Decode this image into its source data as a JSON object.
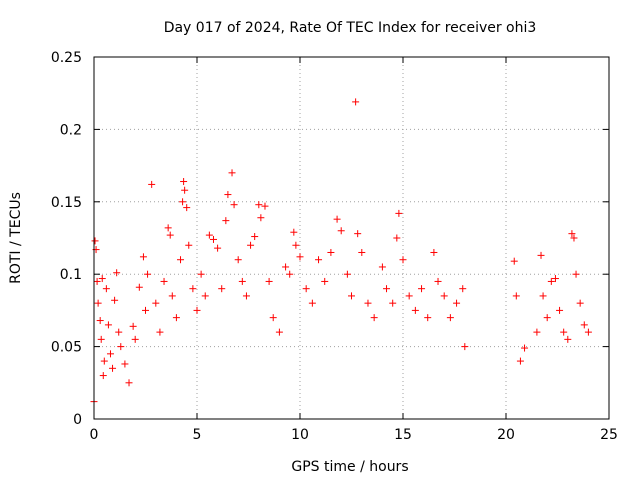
{
  "chart_data": {
    "type": "scatter",
    "title": "Day 017 of 2024, Rate Of TEC Index for receiver ohi3",
    "xlabel": "GPS time / hours",
    "ylabel": "ROTI / TECUs",
    "xlim": [
      0,
      25
    ],
    "ylim": [
      0,
      0.25
    ],
    "x_ticks": [
      "0",
      "5",
      "10",
      "15",
      "20",
      "25"
    ],
    "y_ticks": [
      "0",
      "0.05",
      "0.1",
      "0.15",
      "0.2",
      "0.25"
    ],
    "grid": true,
    "marker": "+",
    "color": "#ff0000",
    "series": [
      {
        "points": [
          [
            0.0,
            0.012
          ],
          [
            0.05,
            0.123
          ],
          [
            0.1,
            0.117
          ],
          [
            0.15,
            0.095
          ],
          [
            0.2,
            0.08
          ],
          [
            0.3,
            0.068
          ],
          [
            0.35,
            0.055
          ],
          [
            0.4,
            0.097
          ],
          [
            0.45,
            0.03
          ],
          [
            0.5,
            0.04
          ],
          [
            0.6,
            0.09
          ],
          [
            0.7,
            0.065
          ],
          [
            0.8,
            0.045
          ],
          [
            0.9,
            0.035
          ],
          [
            1.0,
            0.082
          ],
          [
            1.1,
            0.101
          ],
          [
            1.2,
            0.06
          ],
          [
            1.3,
            0.05
          ],
          [
            1.5,
            0.038
          ],
          [
            1.7,
            0.025
          ],
          [
            1.9,
            0.064
          ],
          [
            2.0,
            0.055
          ],
          [
            2.2,
            0.091
          ],
          [
            2.4,
            0.112
          ],
          [
            2.5,
            0.075
          ],
          [
            2.6,
            0.1
          ],
          [
            2.8,
            0.162
          ],
          [
            3.0,
            0.08
          ],
          [
            3.2,
            0.06
          ],
          [
            3.4,
            0.095
          ],
          [
            3.6,
            0.132
          ],
          [
            3.7,
            0.127
          ],
          [
            3.8,
            0.085
          ],
          [
            4.0,
            0.07
          ],
          [
            4.2,
            0.11
          ],
          [
            4.3,
            0.15
          ],
          [
            4.35,
            0.164
          ],
          [
            4.4,
            0.158
          ],
          [
            4.5,
            0.146
          ],
          [
            4.6,
            0.12
          ],
          [
            4.8,
            0.09
          ],
          [
            5.0,
            0.075
          ],
          [
            5.2,
            0.1
          ],
          [
            5.4,
            0.085
          ],
          [
            5.6,
            0.127
          ],
          [
            5.8,
            0.124
          ],
          [
            6.0,
            0.118
          ],
          [
            6.2,
            0.09
          ],
          [
            6.4,
            0.137
          ],
          [
            6.5,
            0.155
          ],
          [
            6.7,
            0.17
          ],
          [
            6.8,
            0.148
          ],
          [
            7.0,
            0.11
          ],
          [
            7.2,
            0.095
          ],
          [
            7.4,
            0.085
          ],
          [
            7.6,
            0.12
          ],
          [
            7.8,
            0.126
          ],
          [
            8.0,
            0.148
          ],
          [
            8.1,
            0.139
          ],
          [
            8.3,
            0.147
          ],
          [
            8.5,
            0.095
          ],
          [
            8.7,
            0.07
          ],
          [
            9.0,
            0.06
          ],
          [
            9.3,
            0.105
          ],
          [
            9.5,
            0.1
          ],
          [
            9.7,
            0.129
          ],
          [
            9.8,
            0.12
          ],
          [
            10.0,
            0.112
          ],
          [
            10.3,
            0.09
          ],
          [
            10.6,
            0.08
          ],
          [
            10.9,
            0.11
          ],
          [
            11.2,
            0.095
          ],
          [
            11.5,
            0.115
          ],
          [
            11.8,
            0.138
          ],
          [
            12.0,
            0.13
          ],
          [
            12.3,
            0.1
          ],
          [
            12.5,
            0.085
          ],
          [
            12.7,
            0.219
          ],
          [
            12.8,
            0.128
          ],
          [
            13.0,
            0.115
          ],
          [
            13.3,
            0.08
          ],
          [
            13.6,
            0.07
          ],
          [
            14.0,
            0.105
          ],
          [
            14.2,
            0.09
          ],
          [
            14.5,
            0.08
          ],
          [
            14.7,
            0.125
          ],
          [
            14.8,
            0.142
          ],
          [
            15.0,
            0.11
          ],
          [
            15.3,
            0.085
          ],
          [
            15.6,
            0.075
          ],
          [
            15.9,
            0.09
          ],
          [
            16.2,
            0.07
          ],
          [
            16.5,
            0.115
          ],
          [
            16.7,
            0.095
          ],
          [
            17.0,
            0.085
          ],
          [
            17.3,
            0.07
          ],
          [
            17.6,
            0.08
          ],
          [
            17.9,
            0.09
          ],
          [
            18.0,
            0.05
          ],
          [
            20.4,
            0.109
          ],
          [
            20.5,
            0.085
          ],
          [
            20.7,
            0.04
          ],
          [
            20.9,
            0.049
          ],
          [
            21.5,
            0.06
          ],
          [
            21.7,
            0.113
          ],
          [
            21.8,
            0.085
          ],
          [
            22.0,
            0.07
          ],
          [
            22.2,
            0.095
          ],
          [
            22.4,
            0.097
          ],
          [
            22.6,
            0.075
          ],
          [
            22.8,
            0.06
          ],
          [
            23.0,
            0.055
          ],
          [
            23.2,
            0.128
          ],
          [
            23.3,
            0.125
          ],
          [
            23.4,
            0.1
          ],
          [
            23.6,
            0.08
          ],
          [
            23.8,
            0.065
          ],
          [
            24.0,
            0.06
          ]
        ]
      }
    ]
  }
}
